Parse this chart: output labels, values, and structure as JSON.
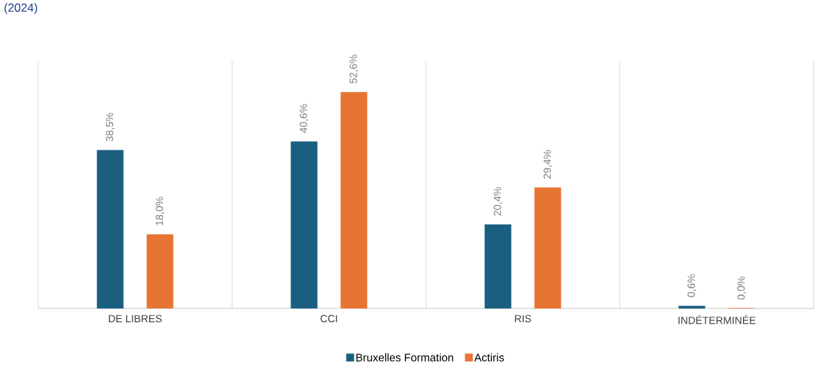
{
  "chart_data": {
    "type": "bar",
    "title": "(2024)",
    "categories": [
      "DE LIBRES",
      "CCI",
      "RIS",
      "INDÉTERMINÉE"
    ],
    "series": [
      {
        "name": "Bruxelles Formation",
        "color": "#1a5f80",
        "values": [
          38.5,
          40.6,
          20.4,
          0.6
        ],
        "value_labels": [
          "38,5%",
          "40,6%",
          "20,4%",
          "0,6%"
        ]
      },
      {
        "name": "Actiris",
        "color": "#e87434",
        "values": [
          18.0,
          52.6,
          29.4,
          0.0
        ],
        "value_labels": [
          "18,0%",
          "52,6%",
          "29,4%",
          "0,0%"
        ]
      }
    ],
    "grid": "x",
    "legend": "bottom"
  }
}
